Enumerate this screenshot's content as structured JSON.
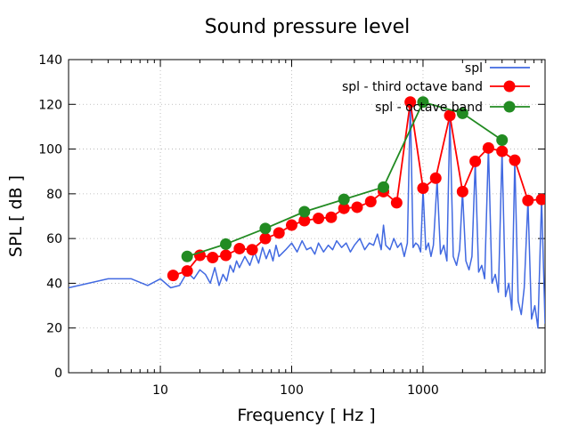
{
  "chart_data": {
    "type": "line",
    "title": "Sound pressure level",
    "xlabel": "Frequency [ Hz ]",
    "ylabel": "SPL [ dB ]",
    "xscale": "log",
    "xlim": [
      2,
      8500
    ],
    "ylim": [
      0,
      140
    ],
    "grid": true,
    "legend_position": "top-right",
    "x_ticks": [
      10,
      100,
      1000
    ],
    "x_tick_labels": [
      "10",
      "100",
      "1000"
    ],
    "y_ticks": [
      0,
      20,
      40,
      60,
      80,
      100,
      120,
      140
    ],
    "y_tick_labels": [
      "0",
      "20",
      "40",
      "60",
      "80",
      "100",
      "120",
      "140"
    ],
    "colors": {
      "spl": "#4169e1",
      "third": "#ff0000",
      "octave": "#228b22"
    },
    "series": [
      {
        "name": "spl",
        "style": "line",
        "color": "#4169e1",
        "x": [
          2,
          4,
          6,
          8,
          10,
          12,
          14,
          16,
          18,
          20,
          22,
          24,
          26,
          28,
          30,
          32,
          34,
          36,
          38,
          40,
          44,
          48,
          52,
          56,
          60,
          64,
          68,
          72,
          76,
          80,
          90,
          100,
          110,
          120,
          130,
          140,
          150,
          160,
          175,
          190,
          205,
          220,
          240,
          260,
          280,
          300,
          330,
          360,
          390,
          420,
          450,
          480,
          500,
          520,
          560,
          600,
          640,
          680,
          720,
          760,
          800,
          840,
          880,
          920,
          960,
          1000,
          1050,
          1100,
          1150,
          1200,
          1280,
          1360,
          1440,
          1520,
          1600,
          1700,
          1800,
          1900,
          2000,
          2120,
          2240,
          2360,
          2500,
          2650,
          2800,
          2950,
          3150,
          3350,
          3550,
          3750,
          4000,
          4250,
          4500,
          4750,
          5000,
          5300,
          5600,
          5900,
          6300,
          6700,
          7100,
          7500,
          8000,
          8500
        ],
        "values": [
          38,
          42,
          42,
          39,
          42,
          38,
          39,
          45,
          42,
          46,
          44,
          40,
          47,
          39,
          44,
          41,
          48,
          45,
          50,
          47,
          52,
          48,
          54,
          49,
          56,
          51,
          55,
          50,
          57,
          52,
          55,
          58,
          54,
          59,
          55,
          56,
          53,
          58,
          54,
          57,
          55,
          59,
          56,
          58,
          54,
          57,
          60,
          55,
          58,
          57,
          62,
          55,
          66,
          57,
          55,
          60,
          56,
          58,
          52,
          58,
          121,
          56,
          58,
          57,
          54,
          82,
          55,
          58,
          52,
          57,
          86,
          53,
          57,
          50,
          115,
          52,
          48,
          55,
          81,
          50,
          46,
          52,
          94,
          45,
          48,
          42,
          101,
          40,
          44,
          36,
          99,
          34,
          40,
          28,
          95,
          32,
          26,
          38,
          77,
          24,
          30,
          20,
          78,
          22
        ]
      },
      {
        "name": "spl - third octave band",
        "style": "line+marker",
        "color": "#ff0000",
        "x": [
          12.5,
          16,
          20,
          25,
          31.5,
          40,
          50,
          63,
          80,
          100,
          125,
          160,
          200,
          250,
          315,
          400,
          500,
          630,
          800,
          1000,
          1250,
          1600,
          2000,
          2500,
          3150,
          4000,
          5000,
          6300,
          8000
        ],
        "values": [
          43.5,
          45.5,
          52.5,
          51.5,
          52.5,
          55.5,
          55,
          60,
          62.5,
          66,
          68,
          69,
          69.5,
          73.5,
          74,
          76.5,
          81,
          76,
          121,
          82.5,
          87,
          115,
          81,
          94.5,
          100.5,
          99,
          95,
          77,
          77.5
        ]
      },
      {
        "name": "spl - octave band",
        "style": "line+marker",
        "color": "#228b22",
        "x": [
          16,
          31.5,
          63,
          125,
          250,
          500,
          1000,
          2000,
          4000
        ],
        "values": [
          52,
          57.5,
          64.5,
          72,
          77.5,
          83,
          121,
          116,
          104
        ]
      }
    ]
  }
}
